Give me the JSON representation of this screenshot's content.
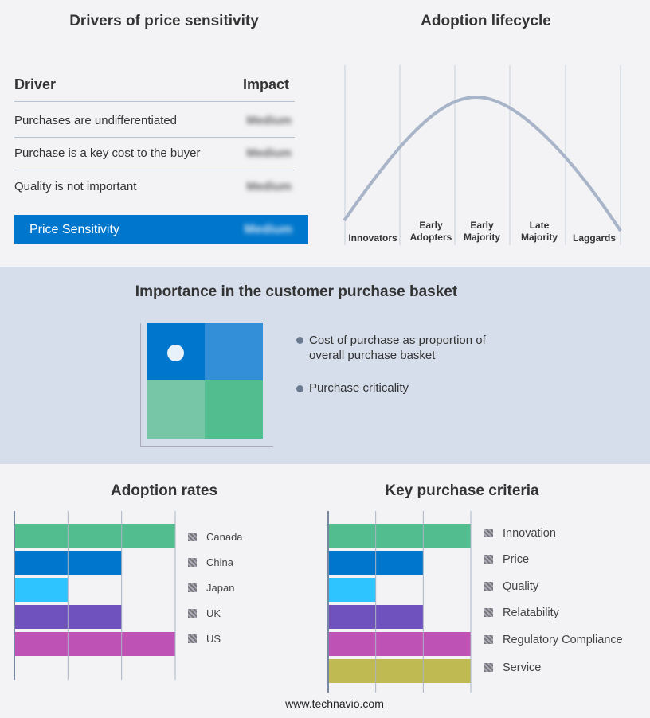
{
  "drivers": {
    "title": "Drivers of price sensitivity",
    "col_driver": "Driver",
    "col_impact": "Impact",
    "rows": [
      {
        "driver": "Purchases are undifferentiated",
        "impact": "Medium"
      },
      {
        "driver": "Purchase is a key cost to the buyer",
        "impact": "Medium"
      },
      {
        "driver": "Quality is not important",
        "impact": "Medium"
      }
    ],
    "summary": {
      "label": "Price Sensitivity",
      "impact": "Medium"
    },
    "accent": "#0077cc"
  },
  "lifecycle": {
    "title": "Adoption lifecycle",
    "stages": [
      "Innovators",
      "Early Adopters",
      "Early Majority",
      "Late Majority",
      "Laggards"
    ]
  },
  "basket": {
    "title": "Importance in the customer purchase basket",
    "legend": [
      "Cost of purchase as proportion of overall purchase basket",
      "Purchase criticality"
    ]
  },
  "chart_data": [
    {
      "type": "bar",
      "title": "Adoption rates",
      "orientation": "horizontal",
      "categories": [
        "Canada",
        "China",
        "Japan",
        "UK",
        "US"
      ],
      "values": [
        3,
        2,
        1,
        2,
        3
      ],
      "xlim": [
        0,
        3
      ],
      "grid": true,
      "colors": [
        "#52be8f",
        "#0077cc",
        "#2ec4ff",
        "#6f52bd",
        "#bf52b5"
      ],
      "legend": "right"
    },
    {
      "type": "bar",
      "title": "Key purchase criteria",
      "orientation": "horizontal",
      "categories": [
        "Innovation",
        "Price",
        "Quality",
        "Relatability",
        "Regulatory Compliance",
        "Service"
      ],
      "values": [
        3,
        2,
        1,
        2,
        3,
        3
      ],
      "xlim": [
        0,
        3
      ],
      "grid": true,
      "colors": [
        "#52be8f",
        "#0077cc",
        "#2ec4ff",
        "#6f52bd",
        "#bf52b5",
        "#bfbb52"
      ],
      "legend": "right"
    }
  ],
  "footer": "www.technavio.com"
}
